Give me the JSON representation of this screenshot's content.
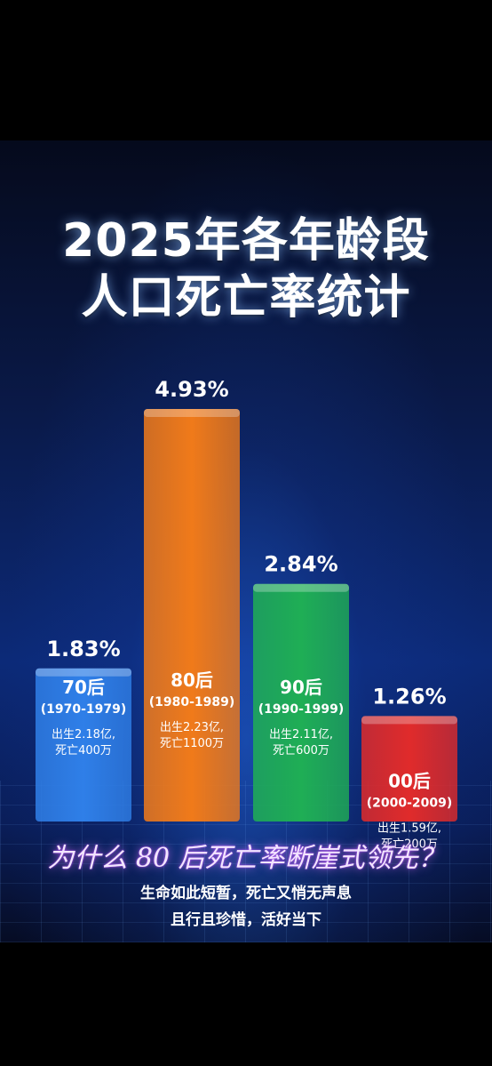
{
  "title_line1": "2025年各年龄段",
  "title_line2": "人口死亡率统计",
  "chart_data": {
    "type": "bar",
    "categories": [
      "70后",
      "80后",
      "90后",
      "00后"
    ],
    "years": [
      "(1970-1979)",
      "(1980-1989)",
      "(1990-1999)",
      "(2000-2009)"
    ],
    "values": [
      1.83,
      4.93,
      2.84,
      1.26
    ],
    "value_labels": [
      "1.83%",
      "4.93%",
      "2.84%",
      "1.26%"
    ],
    "births": [
      "出生2.18亿,",
      "出生2.23亿,",
      "出生2.11亿,",
      "出生1.59亿,"
    ],
    "deaths": [
      "死亡400万",
      "死亡1100万",
      "死亡600万",
      "死亡200万"
    ],
    "colors": [
      "#2f7fe8",
      "#f07a1a",
      "#1fae55",
      "#e02b2b"
    ],
    "ylim": [
      0,
      5
    ]
  },
  "headline": "为什么 80 后死亡率断崖式领先？",
  "subtitle_line1": "生命如此短暂，死亡又悄无声息",
  "subtitle_line2": "且行且珍惜，活好当下"
}
